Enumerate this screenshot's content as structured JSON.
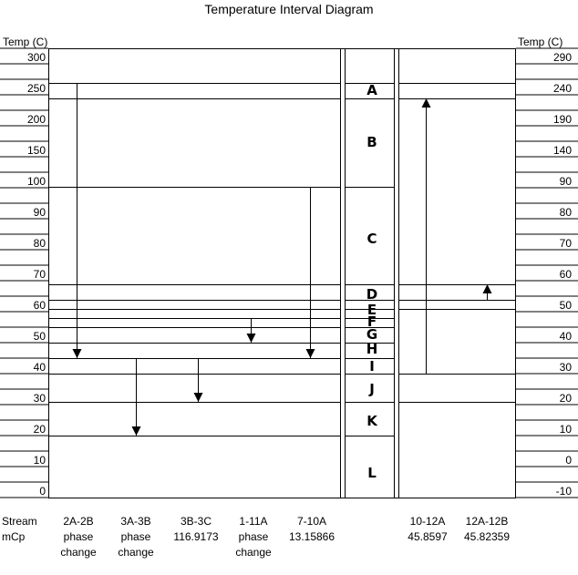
{
  "title": "Temperature Interval Diagram",
  "left_axis": {
    "label": "Temp (C)",
    "ticks": [
      "300",
      "250",
      "200",
      "150",
      "100",
      "90",
      "80",
      "70",
      "60",
      "50",
      "40",
      "30",
      "20",
      "10",
      "0"
    ]
  },
  "right_axis": {
    "label": "Temp (C)",
    "ticks": [
      "290",
      "240",
      "190",
      "140",
      "90",
      "80",
      "70",
      "60",
      "50",
      "40",
      "30",
      "20",
      "10",
      "0",
      "-10"
    ]
  },
  "intervals": [
    "A",
    "B",
    "C",
    "D",
    "E",
    "F",
    "G",
    "H",
    "I",
    "J",
    "K",
    "L"
  ],
  "row_headers": {
    "stream": "Stream",
    "mcp": "mCp"
  },
  "streams": [
    {
      "name": "2A-2B",
      "mcp": "phase\nchange",
      "side": "hot",
      "from_temp": 253,
      "to_temp": 44
    },
    {
      "name": "3A-3B",
      "mcp": "phase\nchange",
      "side": "hot",
      "from_temp": 43,
      "to_temp": 19
    },
    {
      "name": "3B-3C",
      "mcp": "116.9173",
      "side": "hot",
      "from_temp": 43,
      "to_temp": 31
    },
    {
      "name": "1-11A",
      "mcp": "phase\nchange",
      "side": "hot",
      "from_temp": 54,
      "to_temp": 48
    },
    {
      "name": "7-10A",
      "mcp": "13.15866",
      "side": "hot",
      "from_temp": 100,
      "to_temp": 44
    },
    {
      "name": "10-12A",
      "mcp": "45.8597",
      "side": "cold",
      "from_temp": 29,
      "to_temp": 239
    },
    {
      "name": "12A-12B",
      "mcp": "45.82359",
      "side": "cold",
      "from_temp": 50,
      "to_temp": 55
    }
  ]
}
